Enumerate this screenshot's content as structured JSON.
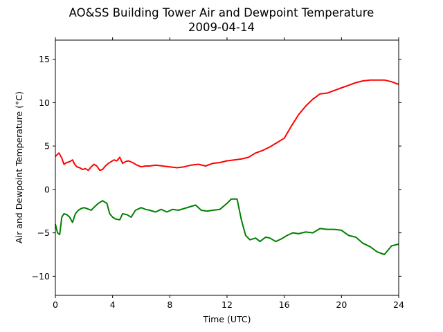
{
  "chart_data": {
    "type": "line",
    "title": "AO&SS Building Tower Air and Dewpoint Temperature",
    "subtitle": "2009-04-14",
    "xlabel": "Time (UTC)",
    "ylabel": "Air and Dewpoint Temperature (°C)",
    "xlim": [
      0,
      24
    ],
    "ylim": [
      -12.2,
      17.2
    ],
    "x_ticks": [
      0,
      4,
      8,
      12,
      16,
      20,
      24
    ],
    "y_ticks": [
      -10,
      -5,
      0,
      5,
      10,
      15
    ],
    "grid": false,
    "legend": "none",
    "series": [
      {
        "color": "#ff0000",
        "x": [
          0,
          0.25,
          0.45,
          0.6,
          0.8,
          1.0,
          1.2,
          1.35,
          1.5,
          1.7,
          1.9,
          2.1,
          2.3,
          2.5,
          2.7,
          2.9,
          3.1,
          3.3,
          3.5,
          3.7,
          3.9,
          4.1,
          4.3,
          4.5,
          4.7,
          4.9,
          5.1,
          5.4,
          5.7,
          6.0,
          6.3,
          6.6,
          7.0,
          7.5,
          8.0,
          8.5,
          9.0,
          9.5,
          10.0,
          10.5,
          11.0,
          11.5,
          12.0,
          12.5,
          13.0,
          13.5,
          14.0,
          14.5,
          15.0,
          15.5,
          16.0,
          16.5,
          17.0,
          17.5,
          18.0,
          18.5,
          19.0,
          19.5,
          20.0,
          20.5,
          21.0,
          21.5,
          22.0,
          22.5,
          23.0,
          23.5,
          24.0
        ],
        "values": [
          3.8,
          4.2,
          3.6,
          2.9,
          3.1,
          3.2,
          3.4,
          2.9,
          2.6,
          2.5,
          2.3,
          2.4,
          2.2,
          2.6,
          2.9,
          2.7,
          2.2,
          2.3,
          2.7,
          3.0,
          3.2,
          3.4,
          3.3,
          3.7,
          3.0,
          3.2,
          3.3,
          3.1,
          2.8,
          2.6,
          2.7,
          2.7,
          2.8,
          2.7,
          2.6,
          2.5,
          2.6,
          2.8,
          2.9,
          2.7,
          3.0,
          3.1,
          3.3,
          3.4,
          3.5,
          3.7,
          4.2,
          4.5,
          4.9,
          5.4,
          5.9,
          7.3,
          8.6,
          9.6,
          10.4,
          11.0,
          11.1,
          11.4,
          11.7,
          12.0,
          12.3,
          12.5,
          12.6,
          12.6,
          12.6,
          12.4,
          12.1
        ]
      },
      {
        "color": "#008000",
        "x": [
          0,
          0.15,
          0.3,
          0.45,
          0.6,
          0.8,
          1.0,
          1.2,
          1.4,
          1.6,
          1.8,
          2.0,
          2.2,
          2.5,
          2.8,
          3.0,
          3.3,
          3.6,
          3.8,
          4.0,
          4.2,
          4.5,
          4.7,
          5.0,
          5.3,
          5.6,
          6.0,
          6.3,
          6.6,
          7.0,
          7.4,
          7.8,
          8.2,
          8.6,
          9.0,
          9.4,
          9.8,
          10.2,
          10.6,
          11.0,
          11.5,
          12.0,
          12.3,
          12.7,
          13.0,
          13.3,
          13.6,
          14.0,
          14.3,
          14.7,
          15.0,
          15.4,
          15.8,
          16.2,
          16.6,
          17.0,
          17.5,
          18.0,
          18.5,
          19.0,
          19.5,
          20.0,
          20.5,
          21.0,
          21.5,
          22.0,
          22.5,
          23.0,
          23.5,
          24.0
        ],
        "values": [
          -4.0,
          -5.0,
          -5.2,
          -3.2,
          -2.8,
          -2.9,
          -3.2,
          -3.8,
          -2.8,
          -2.4,
          -2.2,
          -2.1,
          -2.2,
          -2.4,
          -1.9,
          -1.6,
          -1.3,
          -1.6,
          -2.8,
          -3.2,
          -3.4,
          -3.5,
          -2.8,
          -2.9,
          -3.2,
          -2.4,
          -2.1,
          -2.3,
          -2.4,
          -2.6,
          -2.3,
          -2.6,
          -2.3,
          -2.4,
          -2.2,
          -2.0,
          -1.8,
          -2.4,
          -2.5,
          -2.4,
          -2.3,
          -1.6,
          -1.1,
          -1.1,
          -3.5,
          -5.3,
          -5.8,
          -5.6,
          -6.0,
          -5.5,
          -5.6,
          -6.0,
          -5.7,
          -5.3,
          -5.0,
          -5.1,
          -4.9,
          -5.0,
          -4.5,
          -4.6,
          -4.6,
          -4.7,
          -5.3,
          -5.5,
          -6.2,
          -6.6,
          -7.2,
          -7.5,
          -6.5,
          -6.3
        ]
      }
    ]
  }
}
